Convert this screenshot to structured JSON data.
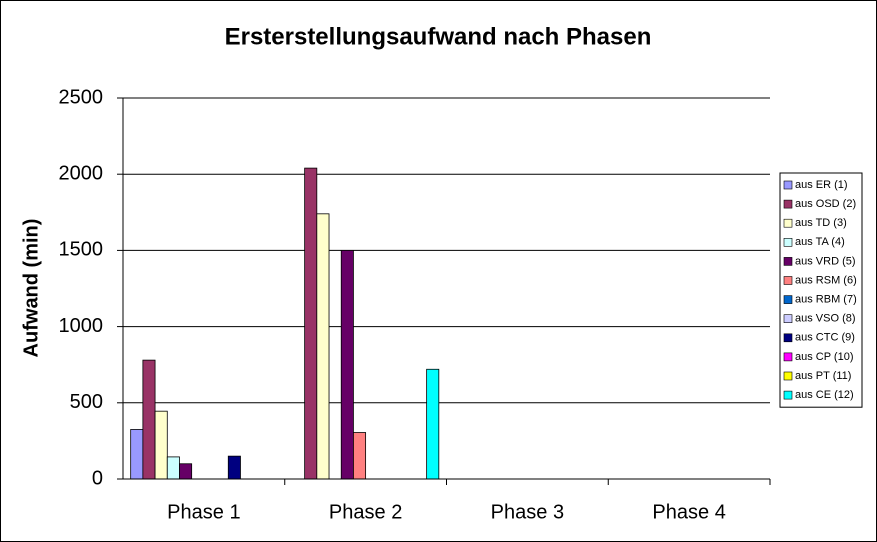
{
  "chart_data": {
    "type": "bar",
    "title": "Ersterstellungsaufwand nach Phasen",
    "y_label": "Aufwand (min)",
    "categories": [
      "Phase 1",
      "Phase 2",
      "Phase 3",
      "Phase 4"
    ],
    "series": [
      {
        "name": "aus ER (1)",
        "color": "#9999ff",
        "values": [
          325,
          0,
          0,
          0
        ]
      },
      {
        "name": "aus OSD (2)",
        "color": "#993366",
        "values": [
          780,
          2040,
          0,
          0
        ]
      },
      {
        "name": "aus TD (3)",
        "color": "#ffffcc",
        "values": [
          445,
          1740,
          0,
          0
        ]
      },
      {
        "name": "aus TA (4)",
        "color": "#ccffff",
        "values": [
          145,
          0,
          0,
          0
        ]
      },
      {
        "name": "aus VRD (5)",
        "color": "#660066",
        "values": [
          100,
          1500,
          0,
          0
        ]
      },
      {
        "name": "aus RSM (6)",
        "color": "#ff8080",
        "values": [
          0,
          305,
          0,
          0
        ]
      },
      {
        "name": "aus RBM (7)",
        "color": "#0066cc",
        "values": [
          0,
          0,
          0,
          0
        ]
      },
      {
        "name": "aus VSO (8)",
        "color": "#ccccff",
        "values": [
          0,
          0,
          0,
          0
        ]
      },
      {
        "name": "aus CTC (9)",
        "color": "#000080",
        "values": [
          150,
          0,
          0,
          0
        ]
      },
      {
        "name": "aus CP (10)",
        "color": "#ff00ff",
        "values": [
          0,
          0,
          0,
          0
        ]
      },
      {
        "name": "aus PT (11)",
        "color": "#ffff00",
        "values": [
          0,
          0,
          0,
          0
        ]
      },
      {
        "name": "aus CE (12)",
        "color": "#00ffff",
        "values": [
          0,
          720,
          0,
          0
        ]
      }
    ],
    "ylim": [
      0,
      2500
    ],
    "yticks": [
      0,
      500,
      1000,
      1500,
      2000,
      2500
    ],
    "grid": true,
    "legend": "right"
  }
}
